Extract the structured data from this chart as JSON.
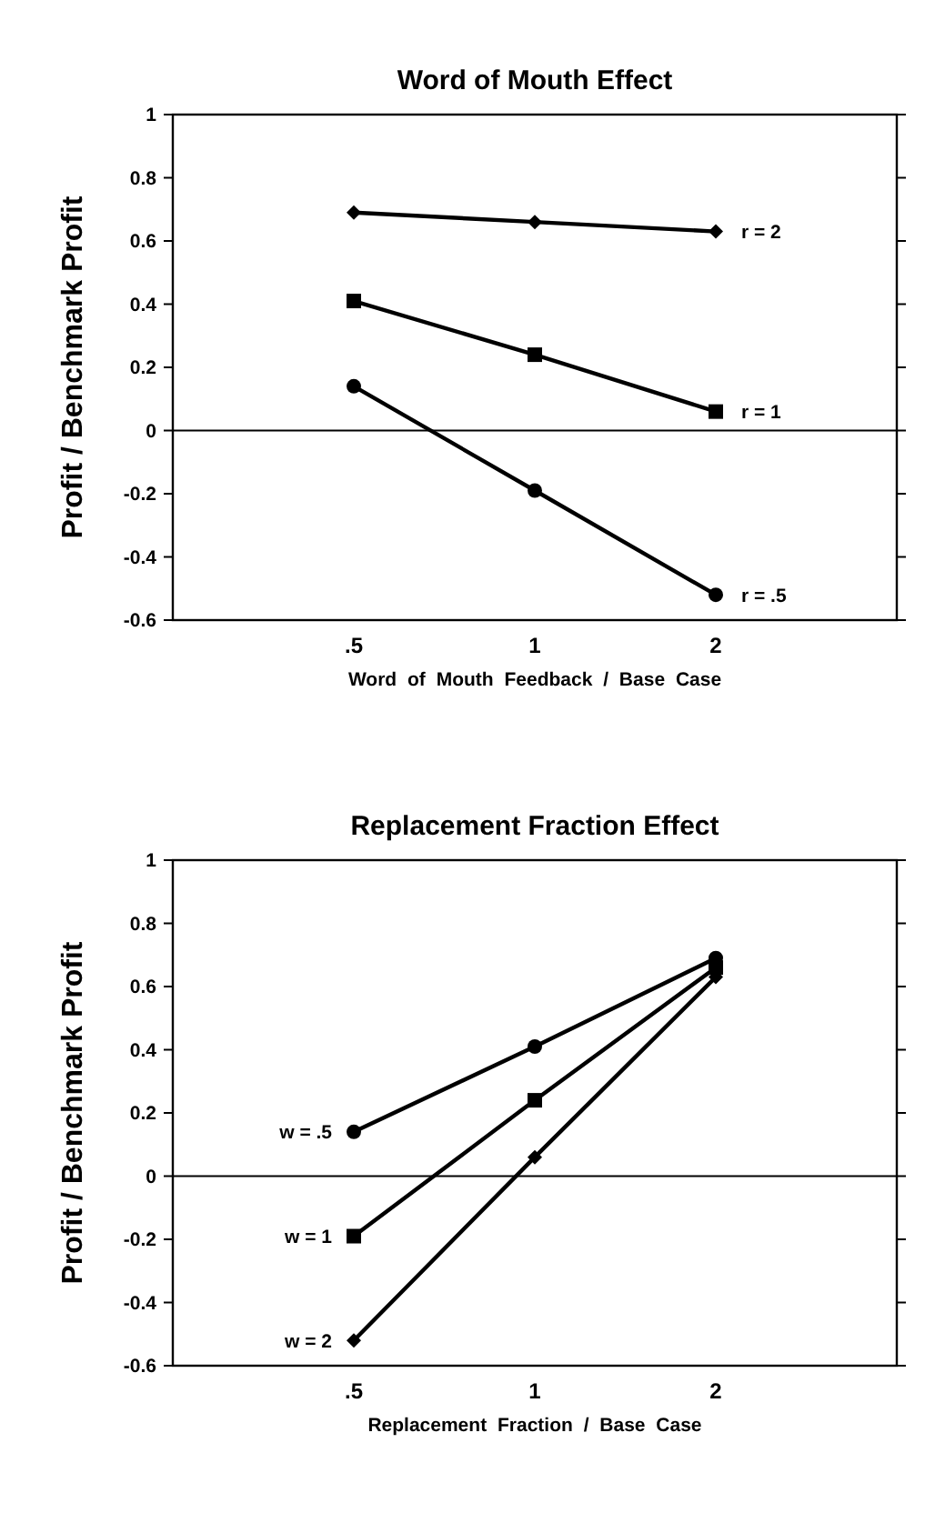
{
  "chart_data": [
    {
      "type": "line",
      "title": "Word of Mouth Effect",
      "xlabel": "Word of Mouth Feedback / Base Case",
      "ylabel": "Profit / Benchmark Profit",
      "categories": [
        ".5",
        "1",
        "2"
      ],
      "ylim": [
        -0.6,
        1
      ],
      "yticks": [
        {
          "value": -0.6,
          "label": "-0.6"
        },
        {
          "value": -0.4,
          "label": "-0.4"
        },
        {
          "value": -0.2,
          "label": "-0.2"
        },
        0,
        0.2,
        0.4,
        0.6,
        0.8,
        1
      ],
      "ref_lines": [
        {
          "axis": "y",
          "value": 0,
          "color": "#000000"
        }
      ],
      "series": [
        {
          "name": "r = 2",
          "color": "#000000",
          "marker": "diamond",
          "values": [
            0.69,
            0.66,
            0.63
          ]
        },
        {
          "name": "r = 1",
          "color": "#000000",
          "marker": "square",
          "values": [
            0.41,
            0.24,
            0.06
          ]
        },
        {
          "name": "r = .5",
          "color": "#000000",
          "marker": "circle",
          "values": [
            0.14,
            -0.19,
            -0.52
          ]
        }
      ]
    },
    {
      "type": "line",
      "title": "Replacement Fraction Effect",
      "xlabel": "Replacement Fraction / Base Case",
      "ylabel": "Profit / Benchmark Profit",
      "categories": [
        ".5",
        "1",
        "2"
      ],
      "ylim": [
        -0.6,
        1
      ],
      "yticks": [
        {
          "value": -0.6,
          "label": "-0.6"
        },
        {
          "value": -0.4,
          "label": "-0.4"
        },
        {
          "value": -0.2,
          "label": "-0.2"
        },
        0,
        0.2,
        0.4,
        0.6,
        0.8,
        1
      ],
      "ref_lines": [
        {
          "axis": "y",
          "value": 0,
          "color": "#000000"
        }
      ],
      "series": [
        {
          "name": "w = .5",
          "color": "#000000",
          "marker": "circle",
          "values": [
            0.14,
            0.41,
            0.69
          ]
        },
        {
          "name": "w = 1",
          "color": "#000000",
          "marker": "square",
          "values": [
            -0.19,
            0.24,
            0.66
          ]
        },
        {
          "name": "w = 2",
          "color": "#000000",
          "marker": "diamond",
          "values": [
            -0.52,
            0.06,
            0.63
          ]
        }
      ]
    }
  ]
}
